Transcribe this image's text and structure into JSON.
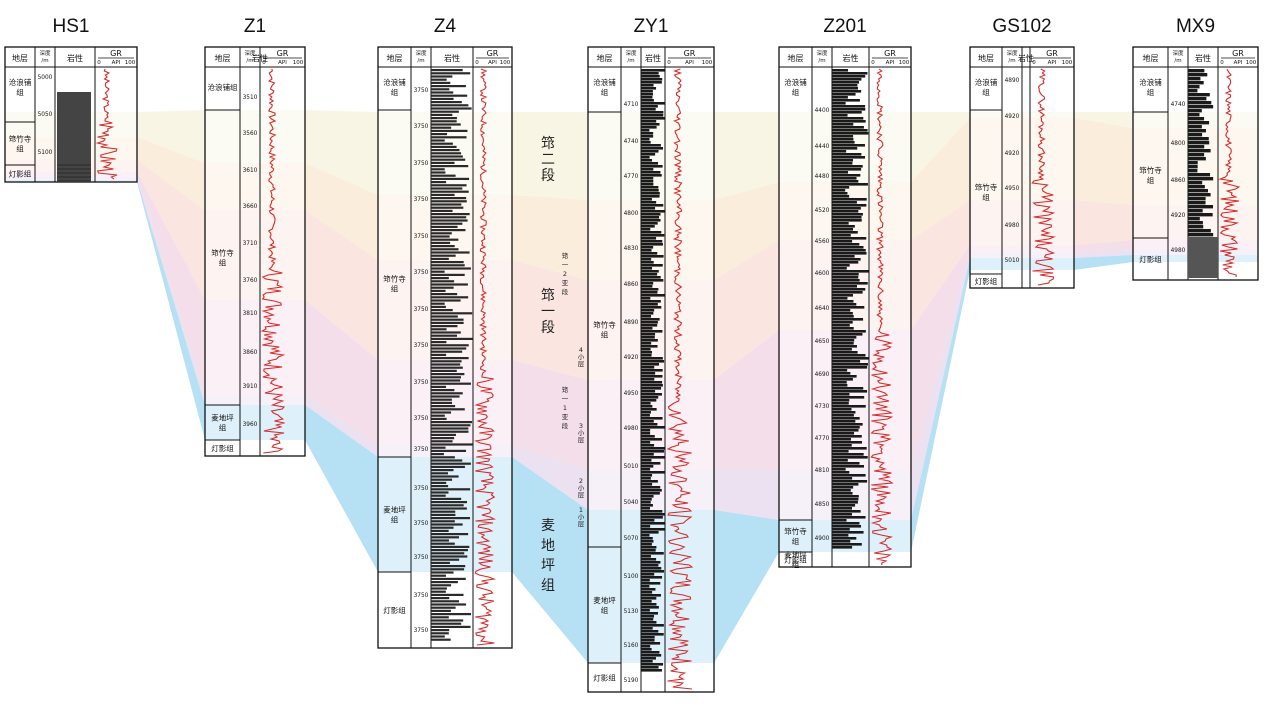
{
  "stage_labels": [
    {
      "id": "d2",
      "text": [
        "筇",
        "二",
        "段"
      ]
    },
    {
      "id": "d1",
      "text": [
        "筇",
        "一",
        "段"
      ]
    },
    {
      "id": "mdp",
      "text": [
        "麦",
        "地",
        "坪",
        "组"
      ]
    },
    {
      "id": "y2",
      "text": [
        "筇",
        "一",
        "2",
        "亚",
        "段"
      ]
    },
    {
      "id": "y1",
      "text": [
        "筇",
        "一",
        "1",
        "亚",
        "段"
      ]
    },
    {
      "id": "x4",
      "text": [
        "4",
        "小",
        "层"
      ]
    },
    {
      "id": "x3",
      "text": [
        "3",
        "小",
        "层"
      ]
    },
    {
      "id": "x2",
      "text": [
        "2",
        "小",
        "层"
      ]
    },
    {
      "id": "x1",
      "text": [
        "1",
        "小",
        "层"
      ]
    }
  ],
  "colors": {
    "band_d2": "#f8f3e0",
    "band_d1a": "#f9e0dc",
    "band_d1b": "#f1d8e6",
    "band_d1c": "#e8dcee",
    "band_mdp": "#a9dbf1",
    "gr_curve": "#d42a2a",
    "lith": "#1a1a1a"
  },
  "header": {
    "formation": "地层",
    "depth": "深度",
    "depth_unit": "/m",
    "lithology": "岩性",
    "gr": "GR",
    "gr_min": "0",
    "gr_unit": "API",
    "gr_max": "100"
  },
  "wells": [
    {
      "name": "HS1",
      "seed": 3,
      "lith": "bricks",
      "formations": [
        {
          "name": "沧浪铺组",
          "lines": [
            "沧浪铺",
            "组"
          ]
        },
        {
          "name": "筇竹寺组",
          "lines": [
            "筇竹寺",
            "组"
          ]
        },
        {
          "name": "灯影组",
          "lines": [
            "灯影组"
          ]
        }
      ],
      "depths": [
        "5000",
        "5050",
        "5100"
      ]
    },
    {
      "name": "Z1",
      "seed": 7,
      "lith": "none",
      "formations": [
        {
          "name": "沧浪铺组",
          "lines": [
            "沧浪铺组"
          ]
        },
        {
          "name": "筇竹寺组",
          "lines": [
            "筇竹寺",
            "组"
          ]
        },
        {
          "name": "麦地坪组",
          "lines": [
            "麦地坪",
            "组"
          ]
        },
        {
          "name": "灯影组",
          "lines": [
            "灯影组"
          ]
        }
      ],
      "depths": [
        "3510",
        "3560",
        "3610",
        "3660",
        "3710",
        "3760",
        "3810",
        "3860",
        "3910",
        "3960"
      ]
    },
    {
      "name": "Z4",
      "seed": 11,
      "lith": "stripes",
      "formations": [
        {
          "name": "沧浪铺组",
          "lines": [
            "沧浪铺",
            "组"
          ]
        },
        {
          "name": "筇竹寺组",
          "lines": [
            "筇竹寺",
            "组"
          ]
        },
        {
          "name": "麦地坪组",
          "lines": [
            "麦地坪",
            "组"
          ]
        },
        {
          "name": "灯影组",
          "lines": [
            "灯影组"
          ]
        }
      ],
      "depths": [
        "3750",
        "3750",
        "3750",
        "3750",
        "3750",
        "3750",
        "3750",
        "3750",
        "3750",
        "3750",
        "3750",
        "3750",
        "3750",
        "3750",
        "3750",
        "3750",
        "3750",
        "3750",
        "3750",
        "3750"
      ]
    },
    {
      "name": "ZY1",
      "seed": 19,
      "lith": "black",
      "formations": [
        {
          "name": "沧浪铺组",
          "lines": [
            "沧浪铺",
            "组"
          ]
        },
        {
          "name": "筇竹寺组",
          "lines": [
            "筇竹寺",
            "组"
          ]
        },
        {
          "name": "麦地坪组",
          "lines": [
            "麦地坪",
            "组"
          ]
        },
        {
          "name": "灯影组",
          "lines": [
            "灯影组"
          ]
        }
      ],
      "depths": [
        "4710",
        "4740",
        "4770",
        "4800",
        "4830",
        "4860",
        "4890",
        "4920",
        "4950",
        "4980",
        "5010",
        "5040",
        "5070",
        "5100",
        "5130",
        "5160",
        "5190"
      ]
    },
    {
      "name": "Z201",
      "seed": 23,
      "lith": "black",
      "formations": [
        {
          "name": "沧浪铺组",
          "lines": [
            "沧浪铺",
            "组"
          ]
        },
        {
          "name": "筇竹寺组",
          "lines": [
            "筇竹寺",
            "组"
          ]
        },
        {
          "name": "麦地坪组",
          "lines": [
            "麦地坪",
            "组"
          ]
        },
        {
          "name": "灯影组",
          "lines": [
            "灯影组"
          ]
        }
      ],
      "depths": [
        "4400",
        "4440",
        "4480",
        "4520",
        "4560",
        "4600",
        "4640",
        "4650",
        "4690",
        "4730",
        "4770",
        "4810",
        "4850",
        "4900"
      ]
    },
    {
      "name": "GS102",
      "seed": 29,
      "lith": "none",
      "formations": [
        {
          "name": "沧浪铺组",
          "lines": [
            "沧浪铺",
            "组"
          ]
        },
        {
          "name": "筇竹寺组",
          "lines": [
            "筇竹寺",
            "组"
          ]
        },
        {
          "name": "灯影组",
          "lines": [
            "灯影组"
          ]
        }
      ],
      "depths": [
        "4890",
        "4920",
        "4920",
        "4950",
        "4980",
        "5010"
      ]
    },
    {
      "name": "MX9",
      "seed": 31,
      "lith": "black-top",
      "formations": [
        {
          "name": "沧浪铺组",
          "lines": [
            "沧浪铺",
            "组"
          ]
        },
        {
          "name": "筇竹寺组",
          "lines": [
            "筇竹寺",
            "组"
          ]
        },
        {
          "name": "灯影组",
          "lines": [
            "灯影组"
          ]
        }
      ],
      "depths": [
        "4740",
        "4800",
        "4860",
        "4920",
        "4980"
      ]
    }
  ]
}
